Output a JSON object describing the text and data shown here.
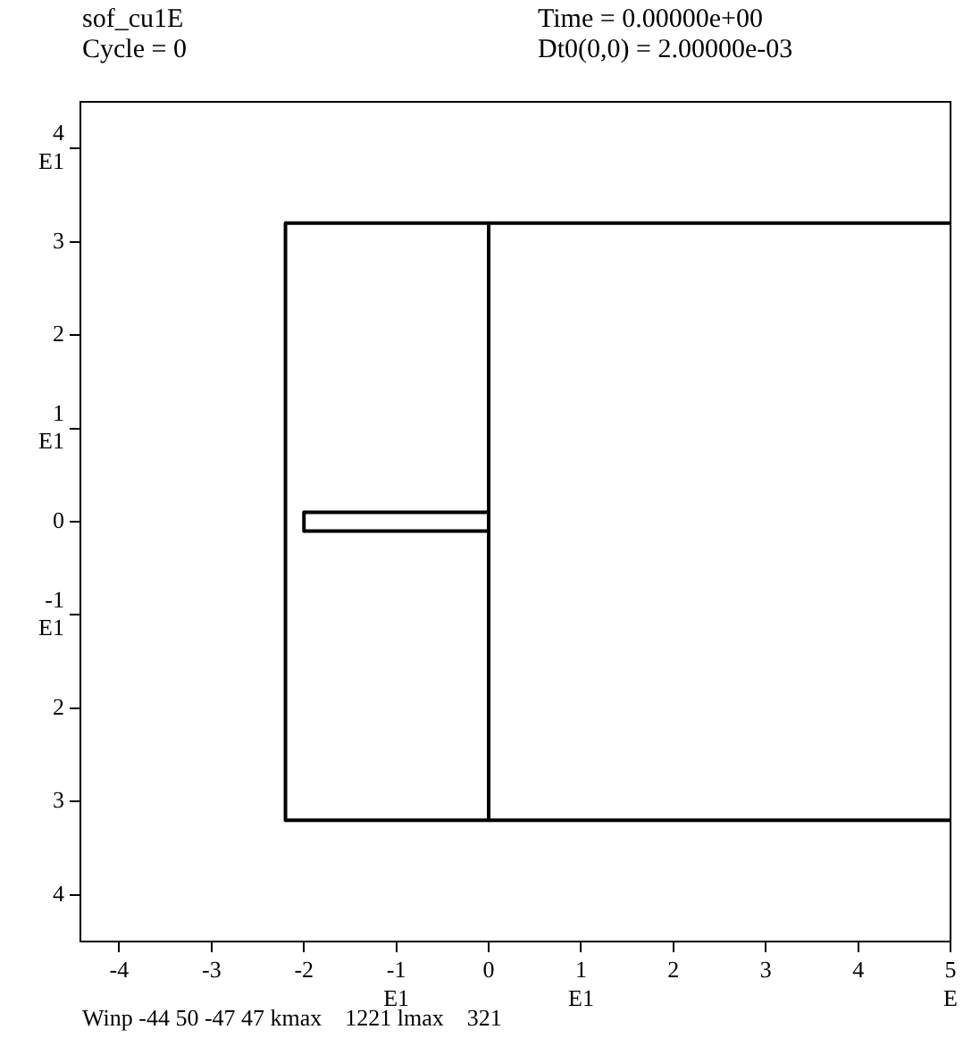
{
  "chart_data": {
    "type": "line",
    "title": "sof_cu1E",
    "annotations": [
      "Cycle = 0",
      "Time = 0.00000e+00",
      "Dt0(0,0) = 2.00000e-03",
      "Winp -44 50 -47 47 kmax    1221 lmax    321"
    ],
    "xlim": [
      -4.42,
      5
    ],
    "ylim": [
      -4.5,
      4.5
    ],
    "xticks": [
      -4,
      -3,
      -2,
      {
        "value": -1,
        "label": "-1\nE1"
      },
      0,
      {
        "value": 1,
        "label": "1\nE1"
      },
      2,
      3,
      4,
      {
        "value": 5,
        "label": "5\nE"
      }
    ],
    "yticks": [
      {
        "value": 4,
        "label": "4\nE1"
      },
      3,
      2,
      {
        "value": 1,
        "label": "1\nE1"
      },
      0,
      {
        "value": -1,
        "label": "-1\nE1"
      },
      {
        "value": -2,
        "label": "2"
      },
      {
        "value": -3,
        "label": "3"
      },
      {
        "value": -4,
        "label": "4"
      }
    ],
    "marker": "none",
    "line_style": "solid",
    "series": [
      {
        "color": "#000000",
        "x": [
          -2.2,
          5
        ],
        "values": [
          3.2,
          3.2
        ]
      },
      {
        "color": "#000000",
        "x": [
          -2.2,
          5
        ],
        "values": [
          -3.2,
          -3.2
        ]
      },
      {
        "color": "#000000",
        "x": [
          -2,
          0
        ],
        "values": [
          0.1,
          0.1
        ]
      },
      {
        "color": "#000000",
        "x": [
          -2,
          0
        ],
        "values": [
          -0.1,
          -0.1
        ]
      },
      {
        "color": "#000000",
        "x": [
          -2.2,
          -2.2
        ],
        "values": [
          3.2,
          -3.2
        ]
      },
      {
        "color": "#000000",
        "x": [
          0,
          0
        ],
        "values": [
          3.2,
          -3.2
        ]
      },
      {
        "color": "#000000",
        "x": [
          -2,
          -2
        ],
        "values": [
          0.1,
          -0.1
        ]
      }
    ]
  }
}
